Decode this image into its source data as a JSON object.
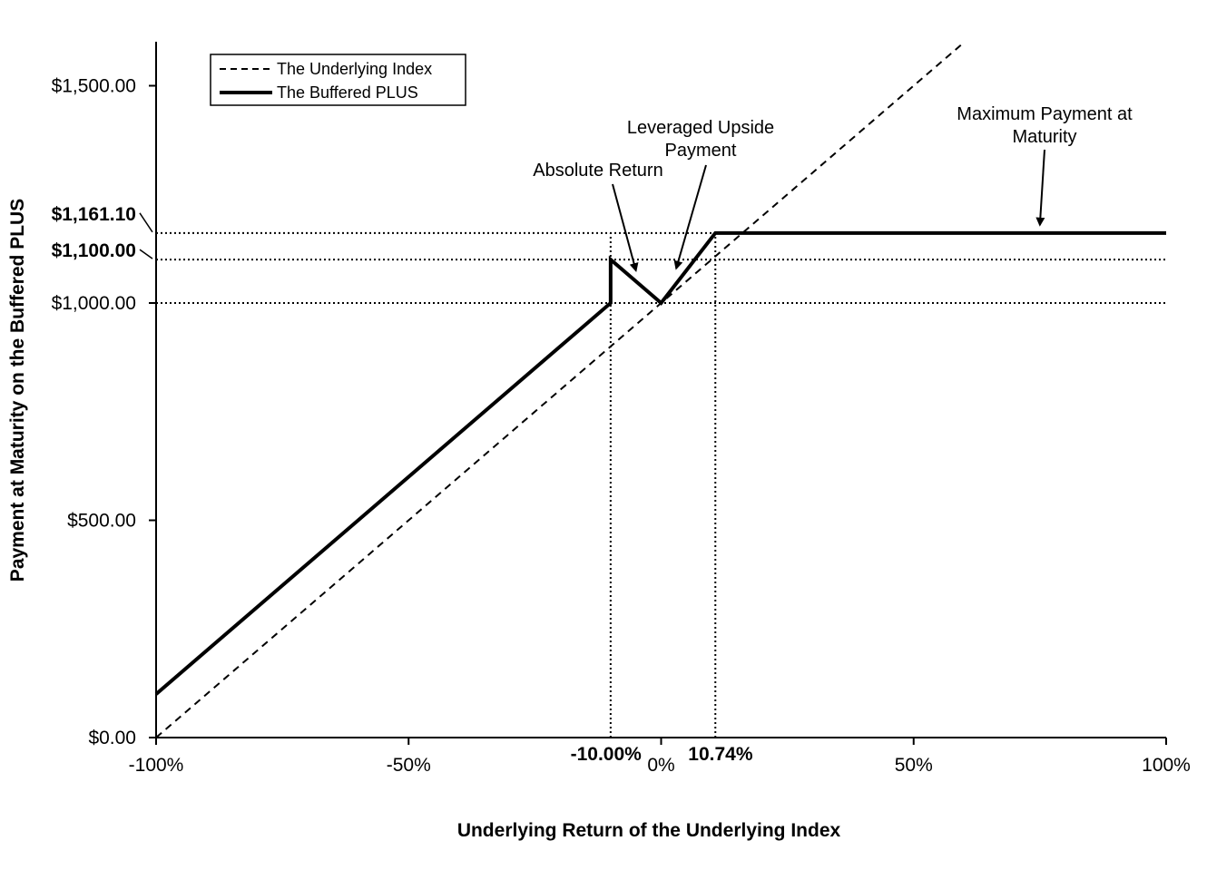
{
  "chart_data": {
    "type": "line",
    "title": "",
    "xlabel": "Underlying Return of the Underlying Index",
    "ylabel": "Payment at Maturity on the Buffered PLUS",
    "xlim": [
      -100,
      100
    ],
    "ylim": [
      0,
      1600
    ],
    "x_ticks": [
      {
        "value": -100,
        "label": "-100%"
      },
      {
        "value": -50,
        "label": "-50%"
      },
      {
        "value": 0,
        "label": "0%"
      },
      {
        "value": 50,
        "label": "50%"
      },
      {
        "value": 100,
        "label": "100%"
      }
    ],
    "x_marked": [
      {
        "value": -10,
        "label": "-10.00%"
      },
      {
        "value": 10.74,
        "label": "10.74%"
      }
    ],
    "y_ticks": [
      {
        "value": 0,
        "label": "$0.00"
      },
      {
        "value": 500,
        "label": "$500.00"
      },
      {
        "value": 1000,
        "label": "$1,000.00"
      },
      {
        "value": 1500,
        "label": "$1,500.00"
      }
    ],
    "y_marked": [
      {
        "value": 1161.1,
        "label": "$1,161.10"
      },
      {
        "value": 1100,
        "label": "$1,100.00"
      }
    ],
    "series": [
      {
        "name": "The Underlying Index",
        "style": "dashed",
        "x": [
          -100,
          60
        ],
        "y": [
          0,
          1600
        ]
      },
      {
        "name": "The Buffered PLUS",
        "style": "solid",
        "x": [
          -100,
          -10,
          -10,
          0,
          10.74,
          100
        ],
        "y": [
          100,
          1000,
          1100,
          1000,
          1161.1,
          1161.1
        ]
      }
    ],
    "reference_lines": {
      "horizontal": [
        1161.1,
        1100,
        1000
      ],
      "vertical": [
        -10,
        10.74
      ]
    },
    "annotations": [
      {
        "lines": [
          "Absolute Return"
        ],
        "arrow_to": [
          -5,
          1075
        ]
      },
      {
        "lines": [
          "Leveraged Upside",
          "Payment"
        ],
        "arrow_to": [
          3,
          1080
        ]
      },
      {
        "lines": [
          "Maximum Payment at",
          "Maturity"
        ],
        "arrow_to": [
          75,
          1180
        ]
      }
    ],
    "legend_position": "top-left",
    "grid": false
  },
  "colors": {
    "line": "#000000",
    "background": "#ffffff"
  }
}
